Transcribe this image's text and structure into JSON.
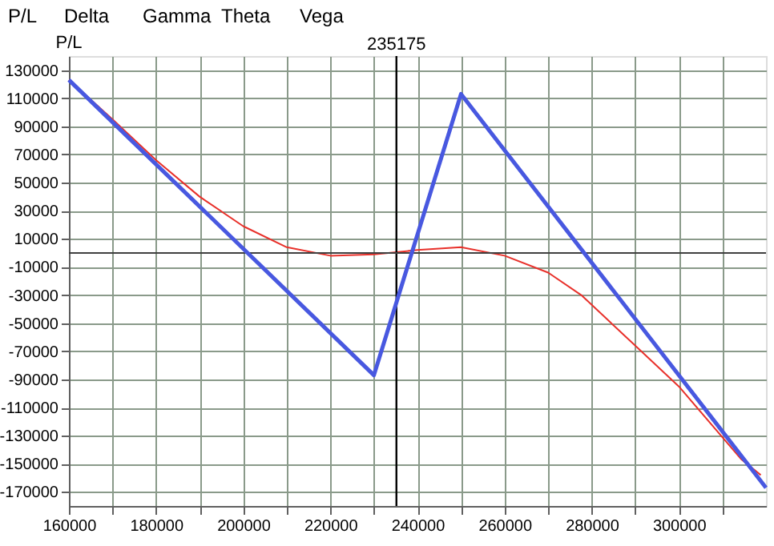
{
  "chart_data": {
    "type": "line",
    "ylabel": "P/L",
    "annotations": [
      "P/L",
      "Delta",
      "Gamma",
      "Theta",
      "Vega"
    ],
    "xlim": [
      160000,
      320000
    ],
    "xticks": [
      160000,
      {
        "value": 170000,
        "label": null
      },
      180000,
      {
        "value": 190000,
        "label": null
      },
      200000,
      {
        "value": 210000,
        "label": null
      },
      220000,
      {
        "value": 230000,
        "label": null
      },
      240000,
      {
        "value": 250000,
        "label": null
      },
      260000,
      {
        "value": 270000,
        "label": null
      },
      280000,
      {
        "value": 290000,
        "label": null
      },
      300000,
      {
        "value": 310000,
        "label": null
      }
    ],
    "ylim": [
      -180000,
      140000
    ],
    "yticks": [
      -170000,
      -150000,
      -130000,
      -110000,
      -90000,
      -70000,
      -50000,
      -30000,
      -10000,
      10000,
      30000,
      50000,
      70000,
      90000,
      110000,
      130000
    ],
    "grid": true,
    "ref_lines": [
      {
        "axis": "x",
        "value": 235175,
        "label": "235175",
        "color": "#000000"
      },
      {
        "axis": "y",
        "value": 0,
        "label": null,
        "color": "#404040"
      }
    ],
    "series": [
      {
        "color": "#e8302a",
        "x": [
          160000,
          170000,
          180000,
          190000,
          200000,
          210000,
          220000,
          230000,
          240000,
          250000,
          260000,
          270000,
          277600,
          290000,
          300000,
          314400,
          318800
        ],
        "values": [
          123000,
          95000,
          66000,
          40000,
          19000,
          4000,
          -2000,
          -1000,
          2000,
          4000,
          -2000,
          -14000,
          -30000,
          -66000,
          -95000,
          -147000,
          -158000
        ]
      },
      {
        "color": "#4858e0",
        "x": [
          160000,
          230000,
          250000,
          320000
        ],
        "values": [
          123000,
          -87000,
          113000,
          -167000
        ]
      }
    ]
  }
}
